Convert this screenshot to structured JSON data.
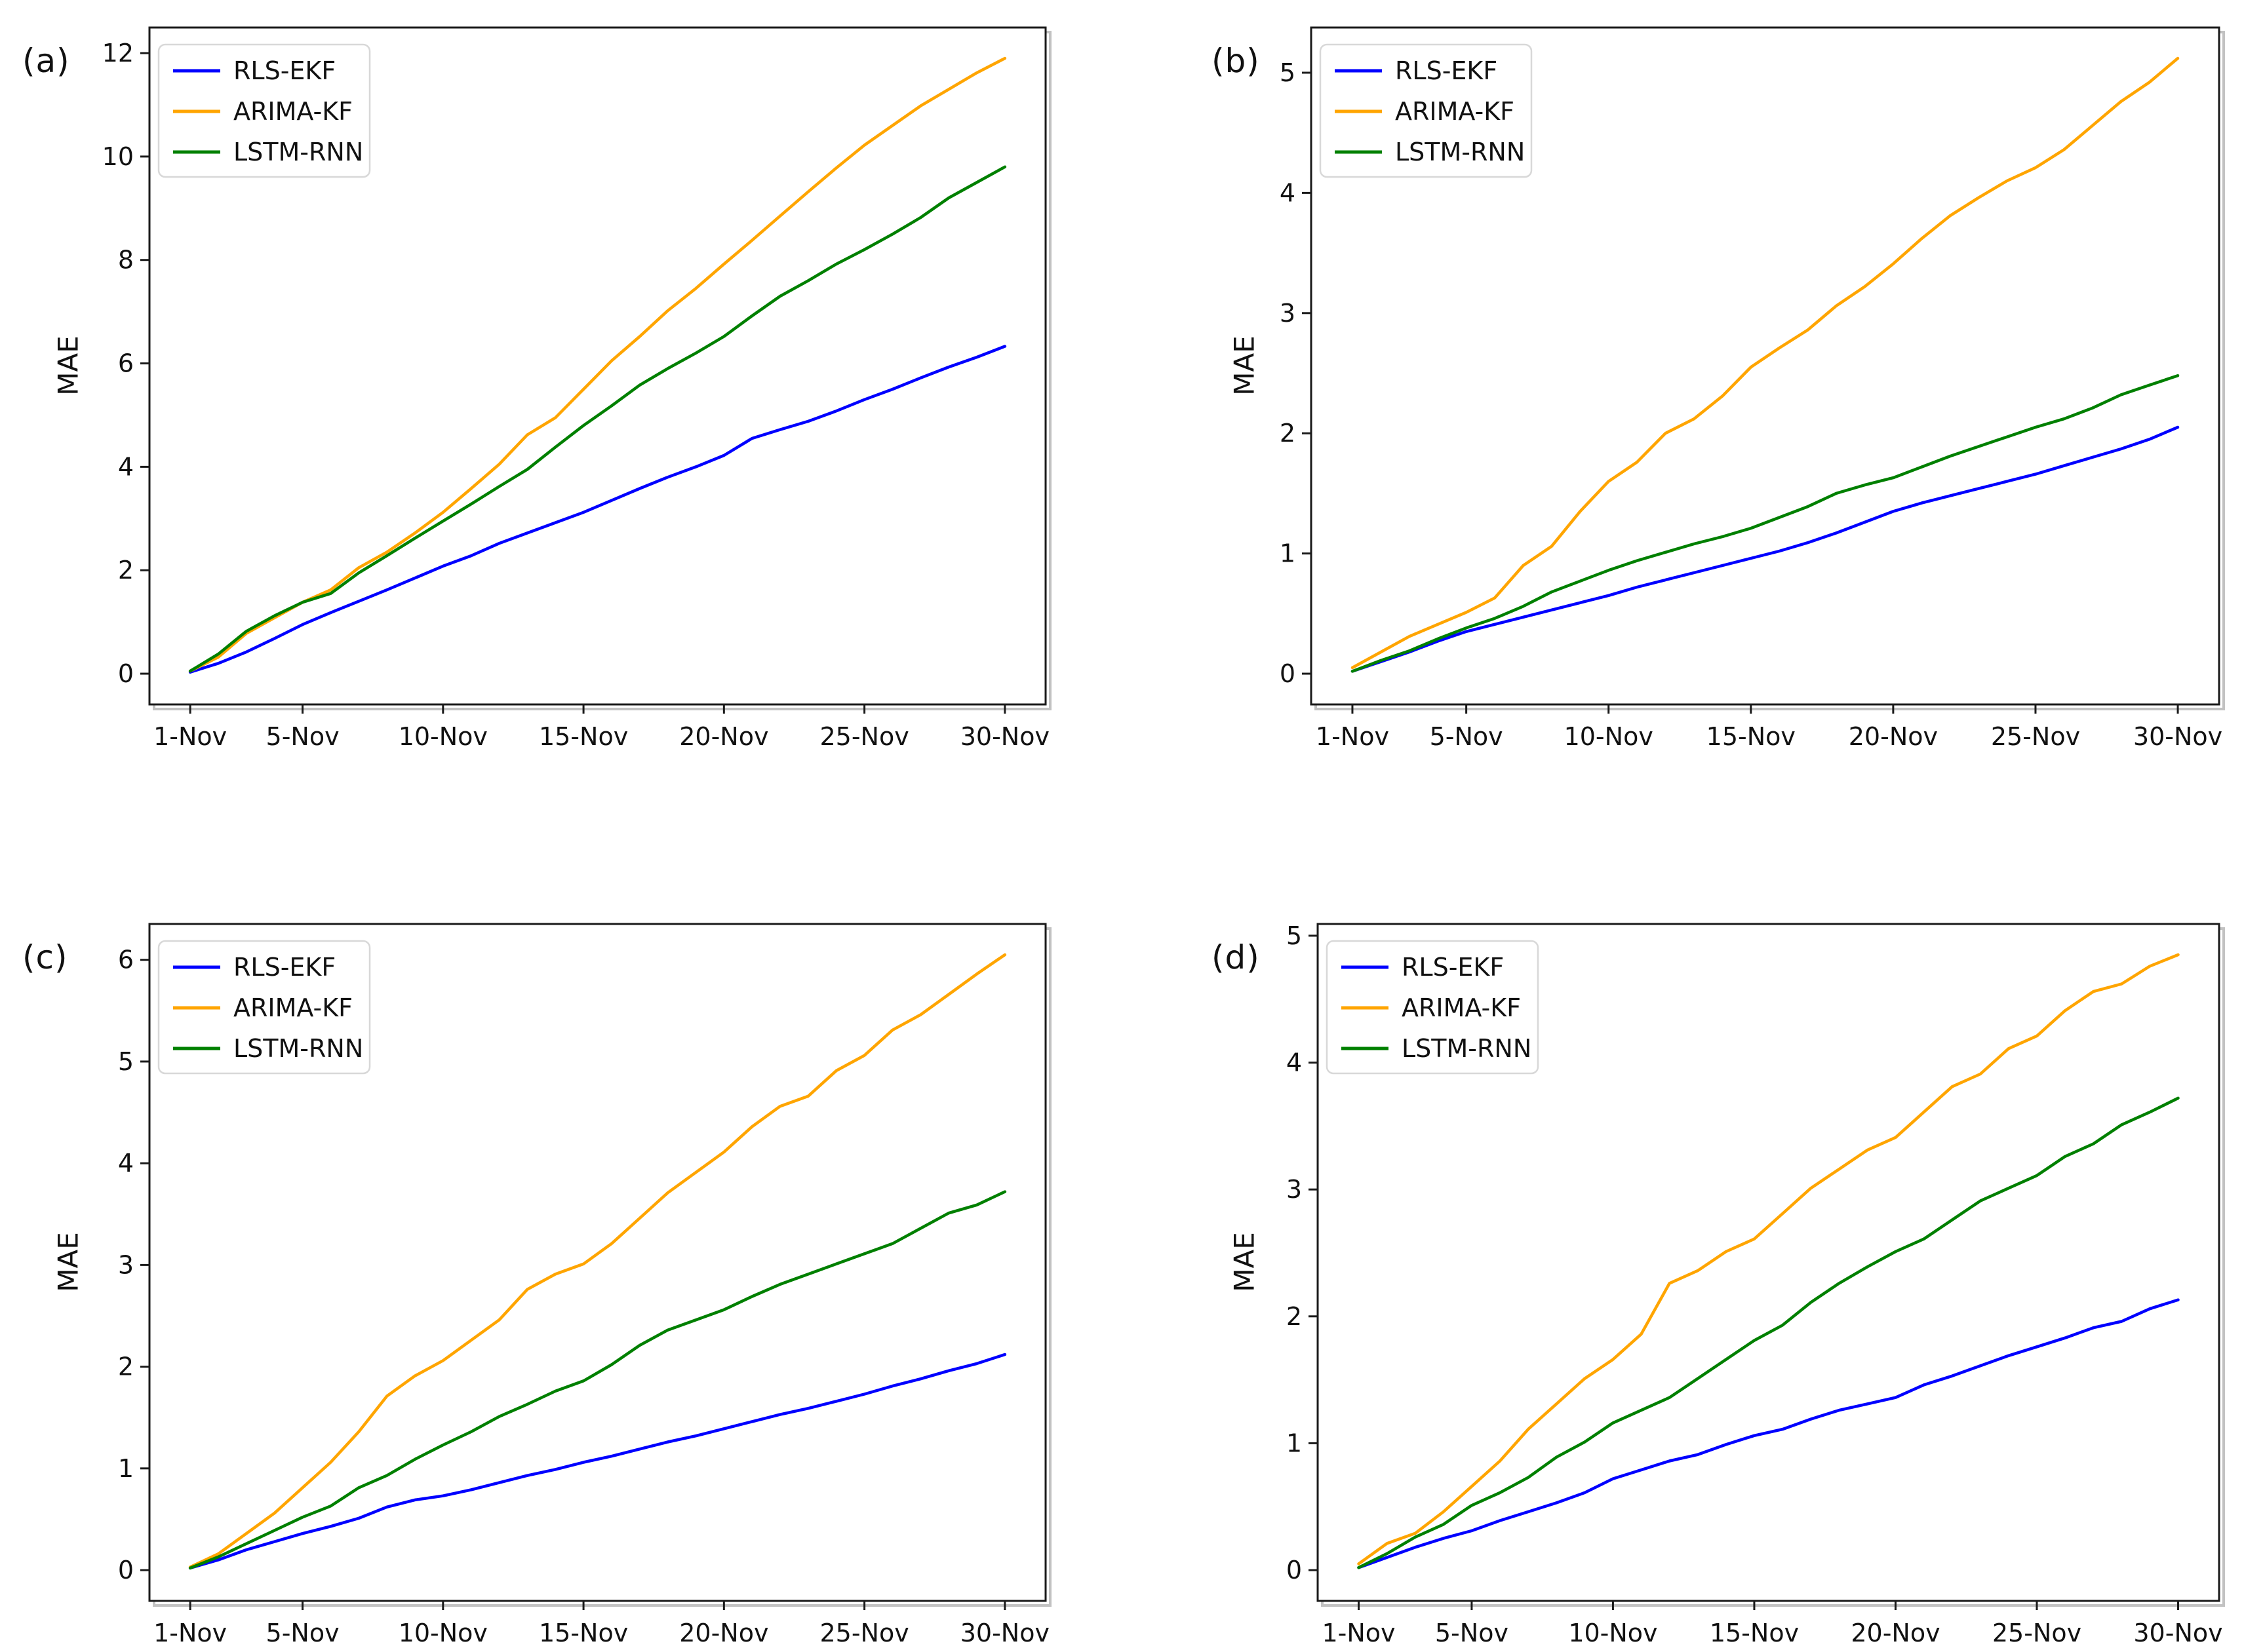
{
  "figure": {
    "background": "#ffffff",
    "axis_color": "#1a1a1a",
    "shadow_color": "#c2c2c2",
    "tick_label_color": "#111111",
    "legend_border_color": "#d8d8d8",
    "legend_background": "#ffffff",
    "ylabel": "MAE",
    "series_names": [
      "RLS-EKF",
      "ARIMA-KF",
      "LSTM-RNN"
    ],
    "series_colors": [
      "#0000ff",
      "#ffa500",
      "#008000"
    ]
  },
  "chart_data": [
    {
      "type": "line",
      "panel_label": "(a)",
      "xlabel": "",
      "ylabel": "MAE",
      "ylim": [
        0,
        12
      ],
      "y_ticks": [
        0,
        2,
        4,
        6,
        8,
        10,
        12
      ],
      "x_days": [
        1,
        2,
        3,
        4,
        5,
        6,
        7,
        8,
        9,
        10,
        11,
        12,
        13,
        14,
        15,
        16,
        17,
        18,
        19,
        20,
        21,
        22,
        23,
        24,
        25,
        26,
        27,
        28,
        29,
        30
      ],
      "x_tick_days": [
        1,
        5,
        10,
        15,
        20,
        25,
        30
      ],
      "x_tick_labels": [
        "1-Nov",
        "5-Nov",
        "10-Nov",
        "15-Nov",
        "20-Nov",
        "25-Nov",
        "30-Nov"
      ],
      "legend_position": "upper-left",
      "grid": false,
      "series": [
        {
          "name": "RLS-EKF",
          "color": "#0000ff",
          "values": [
            0.03,
            0.2,
            0.42,
            0.68,
            0.95,
            1.18,
            1.4,
            1.62,
            1.85,
            2.08,
            2.28,
            2.52,
            2.72,
            2.92,
            3.12,
            3.35,
            3.58,
            3.8,
            4.0,
            4.22,
            4.55,
            4.72,
            4.88,
            5.08,
            5.3,
            5.5,
            5.72,
            5.93,
            6.12,
            6.33
          ]
        },
        {
          "name": "ARIMA-KF",
          "color": "#ffa500",
          "values": [
            0.05,
            0.32,
            0.78,
            1.08,
            1.38,
            1.62,
            2.05,
            2.35,
            2.72,
            3.12,
            3.58,
            4.05,
            4.62,
            4.95,
            5.5,
            6.05,
            6.52,
            7.02,
            7.45,
            7.92,
            8.38,
            8.85,
            9.32,
            9.78,
            10.22,
            10.6,
            10.98,
            11.3,
            11.62,
            11.9
          ]
        },
        {
          "name": "LSTM-RNN",
          "color": "#008000",
          "values": [
            0.05,
            0.38,
            0.82,
            1.12,
            1.38,
            1.55,
            1.95,
            2.28,
            2.62,
            2.95,
            3.28,
            3.62,
            3.95,
            4.38,
            4.8,
            5.18,
            5.58,
            5.9,
            6.2,
            6.52,
            6.92,
            7.3,
            7.6,
            7.92,
            8.2,
            8.5,
            8.82,
            9.2,
            9.5,
            9.8
          ]
        }
      ]
    },
    {
      "type": "line",
      "panel_label": "(b)",
      "xlabel": "",
      "ylabel": "MAE",
      "ylim": [
        0,
        5
      ],
      "y_ticks": [
        0,
        1,
        2,
        3,
        4,
        5
      ],
      "x_days": [
        1,
        2,
        3,
        4,
        5,
        6,
        7,
        8,
        9,
        10,
        11,
        12,
        13,
        14,
        15,
        16,
        17,
        18,
        19,
        20,
        21,
        22,
        23,
        24,
        25,
        26,
        27,
        28,
        29,
        30
      ],
      "x_tick_days": [
        1,
        5,
        10,
        15,
        20,
        25,
        30
      ],
      "x_tick_labels": [
        "1-Nov",
        "5-Nov",
        "10-Nov",
        "15-Nov",
        "20-Nov",
        "25-Nov",
        "30-Nov"
      ],
      "legend_position": "upper-left",
      "grid": false,
      "series": [
        {
          "name": "RLS-EKF",
          "color": "#0000ff",
          "values": [
            0.02,
            0.1,
            0.18,
            0.27,
            0.35,
            0.41,
            0.47,
            0.53,
            0.59,
            0.65,
            0.72,
            0.78,
            0.84,
            0.9,
            0.96,
            1.02,
            1.09,
            1.17,
            1.26,
            1.35,
            1.42,
            1.48,
            1.54,
            1.6,
            1.66,
            1.73,
            1.8,
            1.87,
            1.95,
            2.05
          ]
        },
        {
          "name": "ARIMA-KF",
          "color": "#ffa500",
          "values": [
            0.05,
            0.18,
            0.31,
            0.41,
            0.51,
            0.63,
            0.9,
            1.06,
            1.35,
            1.6,
            1.76,
            2.0,
            2.12,
            2.31,
            2.55,
            2.71,
            2.86,
            3.06,
            3.22,
            3.41,
            3.62,
            3.81,
            3.96,
            4.1,
            4.21,
            4.36,
            4.56,
            4.76,
            4.92,
            5.12
          ]
        },
        {
          "name": "LSTM-RNN",
          "color": "#008000",
          "values": [
            0.02,
            0.11,
            0.19,
            0.29,
            0.38,
            0.46,
            0.56,
            0.68,
            0.77,
            0.86,
            0.94,
            1.01,
            1.08,
            1.14,
            1.21,
            1.3,
            1.39,
            1.5,
            1.57,
            1.63,
            1.72,
            1.81,
            1.89,
            1.97,
            2.05,
            2.12,
            2.21,
            2.32,
            2.4,
            2.48
          ]
        }
      ]
    },
    {
      "type": "line",
      "panel_label": "(c)",
      "xlabel": "",
      "ylabel": "MAE",
      "ylim": [
        0,
        6
      ],
      "y_ticks": [
        0,
        1,
        2,
        3,
        4,
        5,
        6
      ],
      "x_days": [
        1,
        2,
        3,
        4,
        5,
        6,
        7,
        8,
        9,
        10,
        11,
        12,
        13,
        14,
        15,
        16,
        17,
        18,
        19,
        20,
        21,
        22,
        23,
        24,
        25,
        26,
        27,
        28,
        29,
        30
      ],
      "x_tick_days": [
        1,
        5,
        10,
        15,
        20,
        25,
        30
      ],
      "x_tick_labels": [
        "1-Nov",
        "5-Nov",
        "10-Nov",
        "15-Nov",
        "20-Nov",
        "25-Nov",
        "30-Nov"
      ],
      "legend_position": "upper-left",
      "grid": false,
      "series": [
        {
          "name": "RLS-EKF",
          "color": "#0000ff",
          "values": [
            0.02,
            0.1,
            0.2,
            0.28,
            0.36,
            0.43,
            0.51,
            0.62,
            0.69,
            0.73,
            0.79,
            0.86,
            0.93,
            0.99,
            1.06,
            1.12,
            1.19,
            1.26,
            1.32,
            1.39,
            1.46,
            1.53,
            1.59,
            1.66,
            1.73,
            1.81,
            1.88,
            1.96,
            2.03,
            2.12
          ]
        },
        {
          "name": "ARIMA-KF",
          "color": "#ffa500",
          "values": [
            0.03,
            0.16,
            0.36,
            0.56,
            0.81,
            1.06,
            1.36,
            1.71,
            1.91,
            2.06,
            2.26,
            2.46,
            2.76,
            2.91,
            3.01,
            3.21,
            3.46,
            3.71,
            3.91,
            4.11,
            4.36,
            4.56,
            4.66,
            4.91,
            5.06,
            5.31,
            5.46,
            5.66,
            5.86,
            6.05
          ]
        },
        {
          "name": "LSTM-RNN",
          "color": "#008000",
          "values": [
            0.02,
            0.13,
            0.26,
            0.39,
            0.52,
            0.63,
            0.81,
            0.93,
            1.09,
            1.23,
            1.36,
            1.51,
            1.63,
            1.76,
            1.86,
            2.02,
            2.21,
            2.36,
            2.46,
            2.56,
            2.69,
            2.81,
            2.91,
            3.01,
            3.11,
            3.21,
            3.36,
            3.51,
            3.59,
            3.72
          ]
        }
      ]
    },
    {
      "type": "line",
      "panel_label": "(d)",
      "xlabel": "",
      "ylabel": "MAE",
      "ylim": [
        0,
        5
      ],
      "y_ticks": [
        0,
        1,
        2,
        3,
        4,
        5
      ],
      "x_days": [
        1,
        2,
        3,
        4,
        5,
        6,
        7,
        8,
        9,
        10,
        11,
        12,
        13,
        14,
        15,
        16,
        17,
        18,
        19,
        20,
        21,
        22,
        23,
        24,
        25,
        26,
        27,
        28,
        29,
        30
      ],
      "x_tick_days": [
        1,
        5,
        10,
        15,
        20,
        25,
        30
      ],
      "x_tick_labels": [
        "1-Nov",
        "5-Nov",
        "10-Nov",
        "15-Nov",
        "20-Nov",
        "25-Nov",
        "30-Nov"
      ],
      "legend_position": "upper-left",
      "grid": false,
      "series": [
        {
          "name": "RLS-EKF",
          "color": "#0000ff",
          "values": [
            0.02,
            0.1,
            0.18,
            0.25,
            0.31,
            0.39,
            0.46,
            0.53,
            0.61,
            0.72,
            0.79,
            0.86,
            0.91,
            0.99,
            1.06,
            1.11,
            1.19,
            1.26,
            1.31,
            1.36,
            1.46,
            1.53,
            1.61,
            1.69,
            1.76,
            1.83,
            1.91,
            1.96,
            2.06,
            2.13
          ]
        },
        {
          "name": "ARIMA-KF",
          "color": "#ffa500",
          "values": [
            0.05,
            0.21,
            0.29,
            0.46,
            0.66,
            0.86,
            1.11,
            1.31,
            1.51,
            1.66,
            1.86,
            2.26,
            2.36,
            2.51,
            2.61,
            2.81,
            3.01,
            3.16,
            3.31,
            3.41,
            3.61,
            3.81,
            3.91,
            4.11,
            4.21,
            4.41,
            4.56,
            4.62,
            4.76,
            4.85
          ]
        },
        {
          "name": "LSTM-RNN",
          "color": "#008000",
          "values": [
            0.02,
            0.13,
            0.26,
            0.36,
            0.51,
            0.61,
            0.73,
            0.89,
            1.01,
            1.16,
            1.26,
            1.36,
            1.51,
            1.66,
            1.81,
            1.93,
            2.11,
            2.26,
            2.39,
            2.51,
            2.61,
            2.76,
            2.91,
            3.01,
            3.11,
            3.26,
            3.36,
            3.51,
            3.61,
            3.72
          ]
        }
      ]
    }
  ]
}
